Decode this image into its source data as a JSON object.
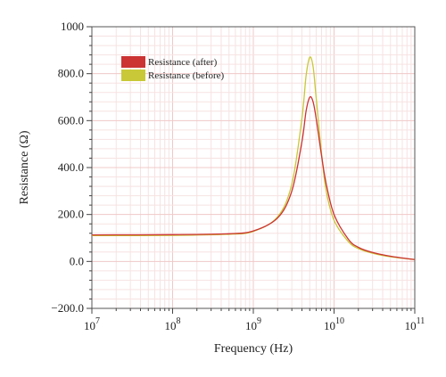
{
  "chart_data": {
    "type": "line",
    "title": "",
    "xlabel": "Frequency (Hz)",
    "ylabel": "Resistance (Ω)",
    "xscale": "log",
    "xlim": [
      10000000,
      100000000000
    ],
    "ylim": [
      -200,
      1000
    ],
    "x_ticks": [
      {
        "value": 10000000,
        "base": "10",
        "exp": "7"
      },
      {
        "value": 100000000,
        "base": "10",
        "exp": "8"
      },
      {
        "value": 1000000000,
        "base": "10",
        "exp": "9"
      },
      {
        "value": 10000000000,
        "base": "10",
        "exp": "10"
      },
      {
        "value": 100000000000,
        "base": "10",
        "exp": "11"
      }
    ],
    "y_ticks": [
      {
        "value": -200,
        "label": "−200.0"
      },
      {
        "value": 0,
        "label": "0.0"
      },
      {
        "value": 200,
        "label": "200.0"
      },
      {
        "value": 400,
        "label": "400.0"
      },
      {
        "value": 600,
        "label": "600.0"
      },
      {
        "value": 800,
        "label": "800.0"
      },
      {
        "value": 1000,
        "label": "1000"
      }
    ],
    "grid": true,
    "legend_position": "top-left",
    "series": [
      {
        "name": "Resistance (after)",
        "color": "#cc3333",
        "x": [
          10000000,
          100000000,
          500000000,
          1000000000,
          2000000000,
          3000000000,
          4000000000,
          4500000000,
          5000000000,
          5500000000,
          6000000000,
          7000000000,
          8000000000,
          10000000000,
          15000000000,
          20000000000,
          30000000000,
          50000000000,
          100000000000
        ],
        "y": [
          113,
          114,
          118,
          130,
          185,
          300,
          510,
          640,
          700,
          680,
          610,
          450,
          330,
          200,
          95,
          60,
          38,
          22,
          8
        ]
      },
      {
        "name": "Resistance (before)",
        "color": "#c8c838",
        "x": [
          10000000,
          100000000,
          500000000,
          1000000000,
          2000000000,
          3000000000,
          4000000000,
          4500000000,
          5000000000,
          5500000000,
          6000000000,
          7000000000,
          8000000000,
          10000000000,
          15000000000,
          20000000000,
          30000000000,
          50000000000,
          100000000000
        ],
        "y": [
          110,
          111,
          116,
          128,
          190,
          330,
          610,
          790,
          870,
          830,
          700,
          460,
          300,
          175,
          85,
          55,
          35,
          20,
          8
        ]
      }
    ]
  }
}
